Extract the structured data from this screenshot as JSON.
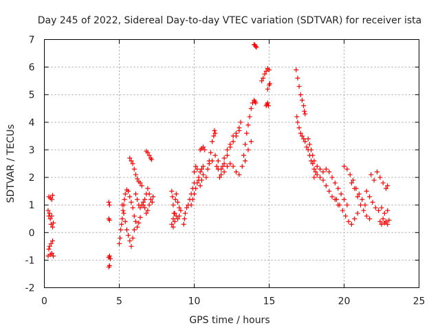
{
  "chart_data": {
    "type": "scatter",
    "title": "Day 245 of 2022, Sidereal Day-to-day VTEC variation (SDTVAR) for receiver ista",
    "xlabel": "GPS time / hours",
    "ylabel": "SDTVAR / TECUs",
    "xlim": [
      0,
      25
    ],
    "ylim": [
      -2,
      7
    ],
    "xticks": [
      0,
      5,
      10,
      15,
      20,
      25
    ],
    "yticks": [
      -2,
      -1,
      0,
      1,
      2,
      3,
      4,
      5,
      6,
      7
    ],
    "grid": true,
    "marker": "+",
    "marker_color": "#ff0000",
    "series": [
      {
        "name": "SDTVAR",
        "points": [
          [
            0.25,
            -0.85
          ],
          [
            0.3,
            -0.6
          ],
          [
            0.35,
            -0.5
          ],
          [
            0.4,
            -0.8
          ],
          [
            0.45,
            -0.4
          ],
          [
            0.5,
            -0.75
          ],
          [
            0.55,
            -0.3
          ],
          [
            0.6,
            -0.85
          ],
          [
            0.25,
            0.8
          ],
          [
            0.3,
            0.6
          ],
          [
            0.35,
            0.7
          ],
          [
            0.4,
            0.5
          ],
          [
            0.45,
            0.3
          ],
          [
            0.5,
            0.6
          ],
          [
            0.55,
            0.2
          ],
          [
            0.6,
            0.35
          ],
          [
            0.3,
            1.3
          ],
          [
            0.4,
            1.25
          ],
          [
            0.5,
            1.2
          ],
          [
            0.55,
            1.35
          ],
          [
            4.3,
            1.1
          ],
          [
            4.35,
            1.0
          ],
          [
            4.3,
            0.5
          ],
          [
            4.35,
            0.45
          ],
          [
            4.3,
            -0.9
          ],
          [
            4.35,
            -0.85
          ],
          [
            4.4,
            -0.95
          ],
          [
            4.3,
            -1.25
          ],
          [
            4.35,
            -1.2
          ],
          [
            5.0,
            -0.4
          ],
          [
            5.05,
            -0.2
          ],
          [
            5.1,
            0.1
          ],
          [
            5.15,
            0.3
          ],
          [
            5.2,
            0.5
          ],
          [
            5.25,
            0.8
          ],
          [
            5.3,
            1.0
          ],
          [
            5.35,
            1.2
          ],
          [
            5.4,
            1.4
          ],
          [
            5.5,
            1.55
          ],
          [
            5.2,
            1.0
          ],
          [
            5.3,
            0.7
          ],
          [
            5.4,
            0.4
          ],
          [
            5.5,
            0.1
          ],
          [
            5.6,
            -0.1
          ],
          [
            5.7,
            -0.3
          ],
          [
            5.8,
            -0.5
          ],
          [
            5.9,
            -0.2
          ],
          [
            6.0,
            0.1
          ],
          [
            5.6,
            1.5
          ],
          [
            5.7,
            1.3
          ],
          [
            5.8,
            1.1
          ],
          [
            5.9,
            0.9
          ],
          [
            6.0,
            0.6
          ],
          [
            6.1,
            0.4
          ],
          [
            6.2,
            0.2
          ],
          [
            6.3,
            0.35
          ],
          [
            6.4,
            0.55
          ],
          [
            6.1,
            1.4
          ],
          [
            6.2,
            1.2
          ],
          [
            6.3,
            1.0
          ],
          [
            6.4,
            0.9
          ],
          [
            6.5,
            1.0
          ],
          [
            6.6,
            1.1
          ],
          [
            6.7,
            0.9
          ],
          [
            6.8,
            0.7
          ],
          [
            6.9,
            0.8
          ],
          [
            7.0,
            1.0
          ],
          [
            5.7,
            2.7
          ],
          [
            5.8,
            2.6
          ],
          [
            5.9,
            2.5
          ],
          [
            6.0,
            2.3
          ],
          [
            6.1,
            2.1
          ],
          [
            6.2,
            1.95
          ],
          [
            6.3,
            1.85
          ],
          [
            6.4,
            1.8
          ],
          [
            6.5,
            1.7
          ],
          [
            6.8,
            2.95
          ],
          [
            6.9,
            2.9
          ],
          [
            7.0,
            2.8
          ],
          [
            7.1,
            2.7
          ],
          [
            7.15,
            2.65
          ],
          [
            6.6,
            1.0
          ],
          [
            6.7,
            1.2
          ],
          [
            6.8,
            1.4
          ],
          [
            6.9,
            1.6
          ],
          [
            7.0,
            1.4
          ],
          [
            7.1,
            1.2
          ],
          [
            7.2,
            1.1
          ],
          [
            7.25,
            1.3
          ],
          [
            8.5,
            1.5
          ],
          [
            8.55,
            1.3
          ],
          [
            8.6,
            1.0
          ],
          [
            8.65,
            0.7
          ],
          [
            8.7,
            0.4
          ],
          [
            8.6,
            0.2
          ],
          [
            8.75,
            1.2
          ],
          [
            8.8,
            1.4
          ],
          [
            8.9,
            1.1
          ],
          [
            9.0,
            0.9
          ],
          [
            9.1,
            0.8
          ],
          [
            8.5,
            0.3
          ],
          [
            8.6,
            0.5
          ],
          [
            8.7,
            0.7
          ],
          [
            8.8,
            0.6
          ],
          [
            8.9,
            0.5
          ],
          [
            9.0,
            0.6
          ],
          [
            9.3,
            0.3
          ],
          [
            9.35,
            0.5
          ],
          [
            9.4,
            0.7
          ],
          [
            9.5,
            0.9
          ],
          [
            9.6,
            1.0
          ],
          [
            9.7,
            1.2
          ],
          [
            9.8,
            1.4
          ],
          [
            9.9,
            1.6
          ],
          [
            10.0,
            1.8
          ],
          [
            9.8,
            1.0
          ],
          [
            9.9,
            1.2
          ],
          [
            10.0,
            1.4
          ],
          [
            10.1,
            1.6
          ],
          [
            10.2,
            1.8
          ],
          [
            10.3,
            2.0
          ],
          [
            10.4,
            2.2
          ],
          [
            10.5,
            2.3
          ],
          [
            10.6,
            2.4
          ],
          [
            10.0,
            2.2
          ],
          [
            10.1,
            2.4
          ],
          [
            10.2,
            2.3
          ],
          [
            10.3,
            1.9
          ],
          [
            10.4,
            1.7
          ],
          [
            10.5,
            1.9
          ],
          [
            10.6,
            2.1
          ],
          [
            10.4,
            3.0
          ],
          [
            10.5,
            3.05
          ],
          [
            10.6,
            3.1
          ],
          [
            10.7,
            3.0
          ],
          [
            10.8,
            2.0
          ],
          [
            10.9,
            2.3
          ],
          [
            11.0,
            2.6
          ],
          [
            11.1,
            2.9
          ],
          [
            11.2,
            3.3
          ],
          [
            11.3,
            3.5
          ],
          [
            11.35,
            3.7
          ],
          [
            11.4,
            3.6
          ],
          [
            11.0,
            2.5
          ],
          [
            11.2,
            2.6
          ],
          [
            11.4,
            2.8
          ],
          [
            11.6,
            2.6
          ],
          [
            11.8,
            2.3
          ],
          [
            12.0,
            2.2
          ],
          [
            12.2,
            2.4
          ],
          [
            12.4,
            2.5
          ],
          [
            12.6,
            2.4
          ],
          [
            12.8,
            2.2
          ],
          [
            13.0,
            2.1
          ],
          [
            11.5,
            2.4
          ],
          [
            11.6,
            2.3
          ],
          [
            11.7,
            2.0
          ],
          [
            11.8,
            2.1
          ],
          [
            11.9,
            2.4
          ],
          [
            12.0,
            2.7
          ],
          [
            12.2,
            3.0
          ],
          [
            12.4,
            3.2
          ],
          [
            12.6,
            3.5
          ],
          [
            12.8,
            3.6
          ],
          [
            13.0,
            3.8
          ],
          [
            12.0,
            2.5
          ],
          [
            12.2,
            2.8
          ],
          [
            12.4,
            3.1
          ],
          [
            12.6,
            3.3
          ],
          [
            12.8,
            3.5
          ],
          [
            13.0,
            3.7
          ],
          [
            13.1,
            4.0
          ],
          [
            13.3,
            2.8
          ],
          [
            13.4,
            3.2
          ],
          [
            13.5,
            3.6
          ],
          [
            13.6,
            3.9
          ],
          [
            13.7,
            4.2
          ],
          [
            13.8,
            4.5
          ],
          [
            13.9,
            4.7
          ],
          [
            13.2,
            2.4
          ],
          [
            13.4,
            2.6
          ],
          [
            13.6,
            3.0
          ],
          [
            13.8,
            3.3
          ],
          [
            14.0,
            6.82
          ],
          [
            14.05,
            6.8
          ],
          [
            14.1,
            6.75
          ],
          [
            14.15,
            6.72
          ],
          [
            14.0,
            4.8
          ],
          [
            14.05,
            4.75
          ],
          [
            14.1,
            4.7
          ],
          [
            14.5,
            5.5
          ],
          [
            14.6,
            5.6
          ],
          [
            14.7,
            5.75
          ],
          [
            14.8,
            5.85
          ],
          [
            14.9,
            5.95
          ],
          [
            15.0,
            5.9
          ],
          [
            14.8,
            4.6
          ],
          [
            14.85,
            4.65
          ],
          [
            14.9,
            4.7
          ],
          [
            14.95,
            4.6
          ],
          [
            14.9,
            5.2
          ],
          [
            15.0,
            5.35
          ],
          [
            15.05,
            5.4
          ],
          [
            16.8,
            5.9
          ],
          [
            16.9,
            5.6
          ],
          [
            17.0,
            5.3
          ],
          [
            17.1,
            5.0
          ],
          [
            17.2,
            4.8
          ],
          [
            17.3,
            4.6
          ],
          [
            17.35,
            4.4
          ],
          [
            17.4,
            4.3
          ],
          [
            16.85,
            4.2
          ],
          [
            16.9,
            4.0
          ],
          [
            17.0,
            3.8
          ],
          [
            17.1,
            3.6
          ],
          [
            17.2,
            3.5
          ],
          [
            17.3,
            3.4
          ],
          [
            17.4,
            3.3
          ],
          [
            17.5,
            3.1
          ],
          [
            17.6,
            3.0
          ],
          [
            17.7,
            2.8
          ],
          [
            17.8,
            2.6
          ],
          [
            17.9,
            2.5
          ],
          [
            18.0,
            2.3
          ],
          [
            18.1,
            2.2
          ],
          [
            17.6,
            3.4
          ],
          [
            17.7,
            3.2
          ],
          [
            17.8,
            3.0
          ],
          [
            17.9,
            2.8
          ],
          [
            18.0,
            2.6
          ],
          [
            18.2,
            2.4
          ],
          [
            18.4,
            2.3
          ],
          [
            18.6,
            2.2
          ],
          [
            18.0,
            2.0
          ],
          [
            18.2,
            2.1
          ],
          [
            18.4,
            2.0
          ],
          [
            18.6,
            1.9
          ],
          [
            18.8,
            1.7
          ],
          [
            19.0,
            1.5
          ],
          [
            19.2,
            1.3
          ],
          [
            19.4,
            1.2
          ],
          [
            19.6,
            1.0
          ],
          [
            18.8,
            2.3
          ],
          [
            19.0,
            2.2
          ],
          [
            19.2,
            2.0
          ],
          [
            19.4,
            1.8
          ],
          [
            19.6,
            1.6
          ],
          [
            19.8,
            1.4
          ],
          [
            20.0,
            1.2
          ],
          [
            20.2,
            1.0
          ],
          [
            19.5,
            1.2
          ],
          [
            19.7,
            1.0
          ],
          [
            19.9,
            0.8
          ],
          [
            20.1,
            0.6
          ],
          [
            20.3,
            0.4
          ],
          [
            20.5,
            0.3
          ],
          [
            20.7,
            0.5
          ],
          [
            20.9,
            0.7
          ],
          [
            20.0,
            2.4
          ],
          [
            20.2,
            2.3
          ],
          [
            20.4,
            2.1
          ],
          [
            20.6,
            1.9
          ],
          [
            20.8,
            1.6
          ],
          [
            21.0,
            1.4
          ],
          [
            21.2,
            1.2
          ],
          [
            21.4,
            1.0
          ],
          [
            20.5,
            1.8
          ],
          [
            20.7,
            1.6
          ],
          [
            20.9,
            1.3
          ],
          [
            21.1,
            1.0
          ],
          [
            21.3,
            0.8
          ],
          [
            21.5,
            0.6
          ],
          [
            21.7,
            0.5
          ],
          [
            21.5,
            1.5
          ],
          [
            21.7,
            1.3
          ],
          [
            21.9,
            1.1
          ],
          [
            22.1,
            0.9
          ],
          [
            22.3,
            0.8
          ],
          [
            22.5,
            0.9
          ],
          [
            22.7,
            0.7
          ],
          [
            22.9,
            0.8
          ],
          [
            21.8,
            2.1
          ],
          [
            22.0,
            1.9
          ],
          [
            22.2,
            2.2
          ],
          [
            22.4,
            2.0
          ],
          [
            22.6,
            1.8
          ],
          [
            22.8,
            1.6
          ],
          [
            22.9,
            1.7
          ],
          [
            22.4,
            0.4
          ],
          [
            22.5,
            0.3
          ],
          [
            22.6,
            0.5
          ],
          [
            22.7,
            0.35
          ],
          [
            22.8,
            0.4
          ],
          [
            22.9,
            0.3
          ],
          [
            23.0,
            0.45
          ]
        ]
      }
    ]
  }
}
